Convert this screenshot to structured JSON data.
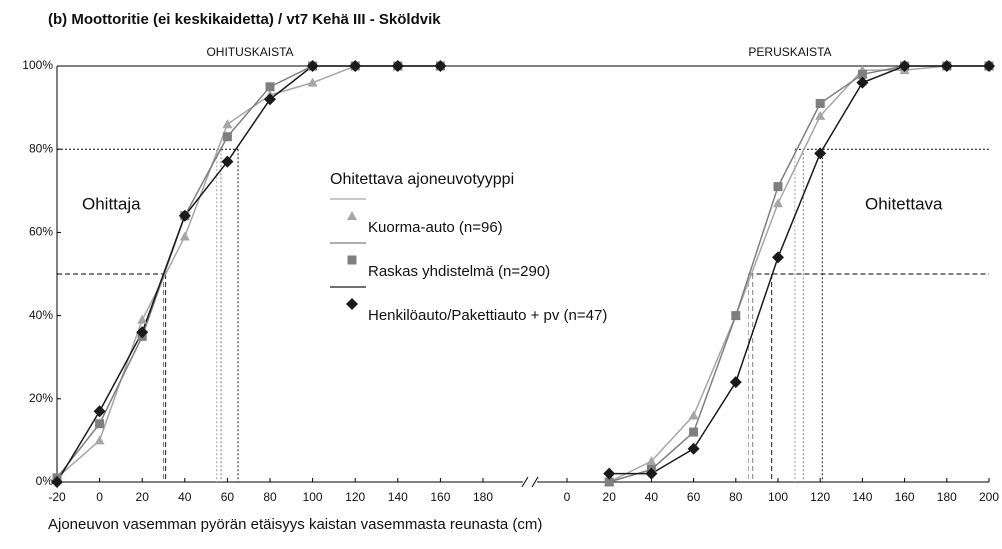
{
  "chart_data": [
    {
      "type": "line",
      "title": "(b) Moottoritie (ei keskikaidetta) / vt7 Kehä III - Sköldvik",
      "subtitle": "OHITUSKAISTA",
      "x_label": "Ajoneuvon vasemman pyörän etäisyys kaistan vasemmasta reunasta (cm)",
      "legend_title": "Ohitettava ajoneuvotyyppi",
      "annotation": "Ohittaja",
      "x": [
        -20,
        0,
        20,
        40,
        60,
        80,
        100,
        120,
        140,
        160
      ],
      "series": [
        {
          "name": "Kuorma-auto (n=96)",
          "color": "#a6a6a6",
          "marker": "triangle",
          "values": [
            1,
            10,
            39,
            59,
            86,
            93,
            96,
            100,
            100,
            100
          ]
        },
        {
          "name": "Raskas yhdistelmä (n=290)",
          "color": "#7f7f7f",
          "marker": "square",
          "values": [
            1,
            14,
            35,
            64,
            83,
            95,
            100,
            100,
            100,
            100
          ]
        },
        {
          "name": "Henkilöauto/Pakettiauto + pv (n=47)",
          "color": "#1a1a1a",
          "marker": "diamond",
          "values": [
            0,
            17,
            36,
            64,
            77,
            92,
            100,
            100,
            100,
            100
          ]
        }
      ],
      "percentile_lines": [
        {
          "y": 50,
          "style": "dashed",
          "x": [
            30,
            30,
            31
          ]
        },
        {
          "y": 80,
          "style": "dotted",
          "x": [
            55,
            57,
            65
          ]
        }
      ],
      "xlim": [
        -20,
        180
      ],
      "xticks": [
        -20,
        0,
        20,
        40,
        60,
        80,
        100,
        120,
        140,
        160,
        180
      ],
      "ylim": [
        0,
        100
      ],
      "yticks": [
        {
          "value": 0,
          "label": "0%"
        },
        {
          "value": 20,
          "label": "20%"
        },
        {
          "value": 40,
          "label": "40%"
        },
        {
          "value": 60,
          "label": "60%"
        },
        {
          "value": 80,
          "label": "80%"
        },
        {
          "value": 100,
          "label": "100%"
        }
      ],
      "grid": false
    },
    {
      "type": "line",
      "subtitle": "PERUSKAISTA",
      "annotation": "Ohitettava",
      "x": [
        20,
        40,
        60,
        80,
        100,
        120,
        140,
        160,
        180,
        200
      ],
      "series": [
        {
          "color": "#a6a6a6",
          "marker": "triangle",
          "values": [
            0,
            5,
            16,
            40,
            67,
            88,
            99,
            99,
            100,
            100
          ]
        },
        {
          "color": "#7f7f7f",
          "marker": "square",
          "values": [
            0,
            3,
            12,
            40,
            71,
            91,
            98,
            100,
            100,
            100
          ]
        },
        {
          "color": "#1a1a1a",
          "marker": "diamond",
          "values": [
            2,
            2,
            8,
            24,
            54,
            79,
            96,
            100,
            100,
            100
          ]
        }
      ],
      "percentile_lines": [
        {
          "y": 50,
          "style": "dashed",
          "x": [
            86,
            88,
            97
          ]
        },
        {
          "y": 80,
          "style": "dotted",
          "x": [
            108,
            112,
            121
          ]
        }
      ],
      "xlim": [
        0,
        200
      ],
      "xticks": [
        0,
        20,
        40,
        60,
        80,
        100,
        120,
        140,
        160,
        180,
        200
      ],
      "ylim": [
        0,
        100
      ],
      "grid": false
    }
  ]
}
